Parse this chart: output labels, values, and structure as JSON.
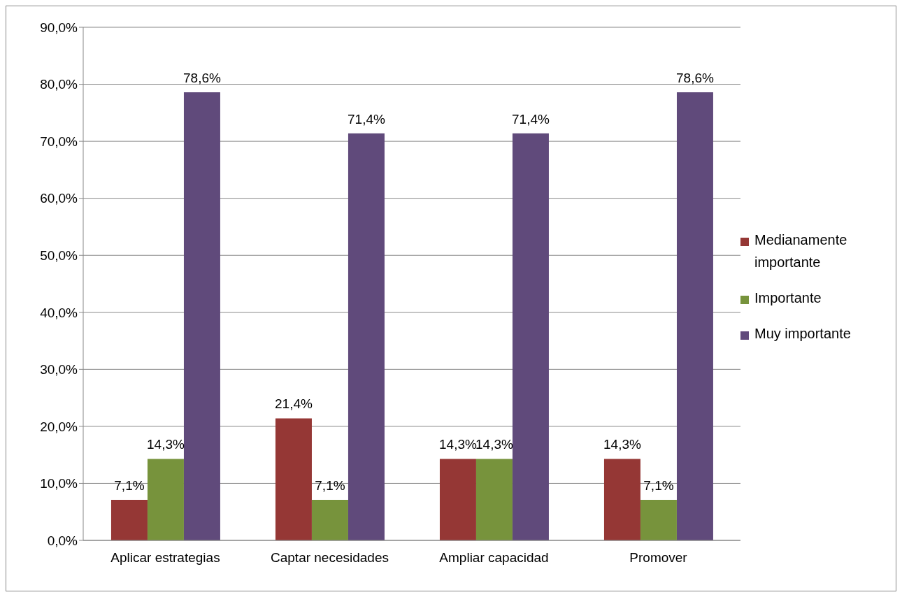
{
  "chart_data": {
    "type": "bar",
    "categories": [
      "Aplicar estrategias",
      "Captar necesidades",
      "Ampliar capacidad",
      "Promover"
    ],
    "series": [
      {
        "name": "Medianamente importante",
        "color": "#953735",
        "values": [
          7.1,
          21.4,
          14.3,
          14.3
        ],
        "value_labels": [
          "7,1%",
          "21,4%",
          "14,3%",
          "14,3%"
        ]
      },
      {
        "name": "Importante",
        "color": "#77933c",
        "values": [
          14.3,
          7.1,
          14.3,
          7.1
        ],
        "value_labels": [
          "14,3%",
          "7,1%",
          "14,3%",
          "7,1%"
        ]
      },
      {
        "name": "Muy importante",
        "color": "#604a7b",
        "values": [
          78.6,
          71.4,
          71.4,
          78.6
        ],
        "value_labels": [
          "78,6%",
          "71,4%",
          "71,4%",
          "78,6%"
        ]
      }
    ],
    "ylim": [
      0,
      90
    ],
    "yticks": [
      {
        "value": 0,
        "label": "0,0%"
      },
      {
        "value": 10,
        "label": "10,0%"
      },
      {
        "value": 20,
        "label": "20,0%"
      },
      {
        "value": 30,
        "label": "30,0%"
      },
      {
        "value": 40,
        "label": "40,0%"
      },
      {
        "value": 50,
        "label": "50,0%"
      },
      {
        "value": 60,
        "label": "60,0%"
      },
      {
        "value": 70,
        "label": "70,0%"
      },
      {
        "value": 80,
        "label": "80,0%"
      },
      {
        "value": 90,
        "label": "90,0%"
      }
    ],
    "grid": "y",
    "legend": "right"
  }
}
